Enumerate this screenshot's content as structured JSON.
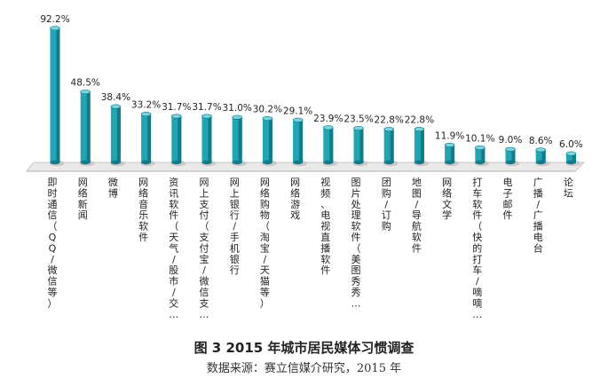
{
  "chart_data": {
    "type": "bar",
    "categories": [
      "即时通信（QQ/微信等）",
      "网络新闻",
      "微博",
      "网络音乐软件",
      "资讯软件（天气/股市/交…",
      "网上支付（支付宝/微信支…",
      "网上银行/手机银行",
      "网络购物（淘宝/天猫等）",
      "网络游戏",
      "视频、电视直播软件",
      "图片处理软件（美图秀秀…",
      "团购/订购",
      "地图/导航软件",
      "网络文学",
      "打车软件（快的打车/嘀嘀…",
      "电子邮件",
      "广播/广播电台",
      "论坛"
    ],
    "values": [
      92.2,
      48.5,
      38.4,
      33.2,
      31.7,
      31.7,
      31.0,
      30.2,
      29.1,
      23.9,
      23.5,
      22.8,
      22.8,
      11.9,
      10.1,
      9.0,
      8.6,
      6.0
    ],
    "value_labels": [
      "92.2%",
      "48.5%",
      "38.4%",
      "33.2%",
      "31.7%",
      "31.7%",
      "31.0%",
      "30.2%",
      "29.1%",
      "23.9%",
      "23.5%",
      "22.8%",
      "22.8%",
      "11.9%",
      "10.1%",
      "9.0%",
      "8.6%",
      "6.0%"
    ],
    "ylim": [
      0,
      100
    ],
    "grid": false,
    "bar_color": "#1fa5b4",
    "bar_color_dark": "#0e7c89",
    "bar_color_light": "#7fd3dc",
    "floor_color": "#e9e9e9"
  },
  "caption": {
    "title": "图 3    2015 年城市居民媒体习惯调查",
    "source": "数据来源：赛立信媒介研究，2015 年"
  }
}
